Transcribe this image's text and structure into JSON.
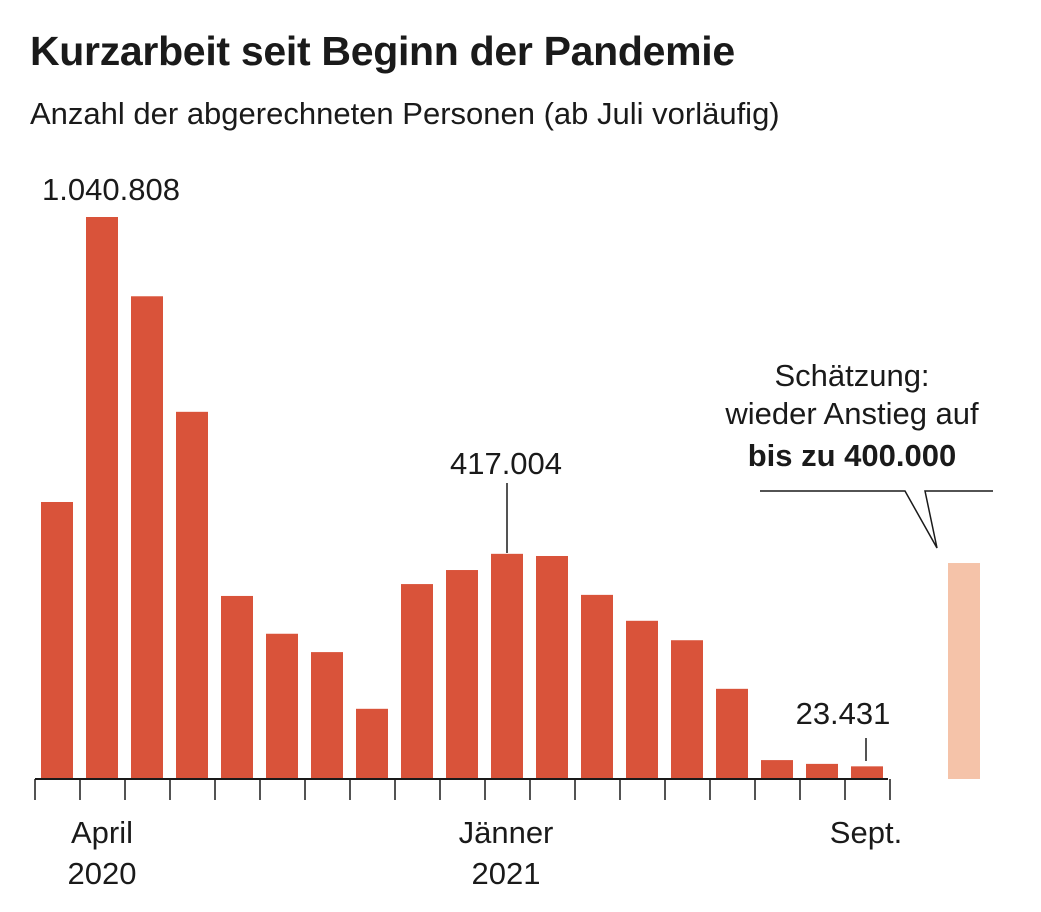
{
  "chart_data": {
    "type": "bar",
    "title": "Kurzarbeit seit Beginn der Pandemie",
    "subtitle": "Anzahl der abgerechneten Personen (ab Juli vorläufig)",
    "categories": [
      "2020-03",
      "2020-04",
      "2020-05",
      "2020-06",
      "2020-07",
      "2020-08",
      "2020-09",
      "2020-10",
      "2020-11",
      "2020-12",
      "2021-01",
      "2021-02",
      "2021-03",
      "2021-04",
      "2021-05",
      "2021-06",
      "2021-07",
      "2021-08",
      "2021-09"
    ],
    "values": [
      513000,
      1040808,
      894000,
      680000,
      339000,
      269000,
      235000,
      130000,
      361000,
      387000,
      417004,
      413000,
      341000,
      293000,
      257000,
      167000,
      35000,
      28000,
      23431
    ],
    "estimate": {
      "value": 400000,
      "color": "#f5c3a9"
    },
    "bar_color": "#d9533a",
    "ylim": [
      0,
      1040808
    ],
    "grid": false,
    "x_tick_labels": [
      {
        "category": "2020-04",
        "lines": [
          "April",
          "2020"
        ]
      },
      {
        "category": "2021-01",
        "lines": [
          "Jänner",
          "2021"
        ]
      },
      {
        "category": "2021-09",
        "lines": [
          "Sept."
        ]
      }
    ],
    "data_labels": [
      {
        "category": "2020-04",
        "text": "1.040.808"
      },
      {
        "category": "2021-01",
        "text": "417.004"
      },
      {
        "category": "2021-09",
        "text": "23.431"
      }
    ],
    "annotation": {
      "line1": "Schätzung:",
      "line2": "wieder Anstieg auf",
      "line3": "bis zu 400.000"
    }
  }
}
